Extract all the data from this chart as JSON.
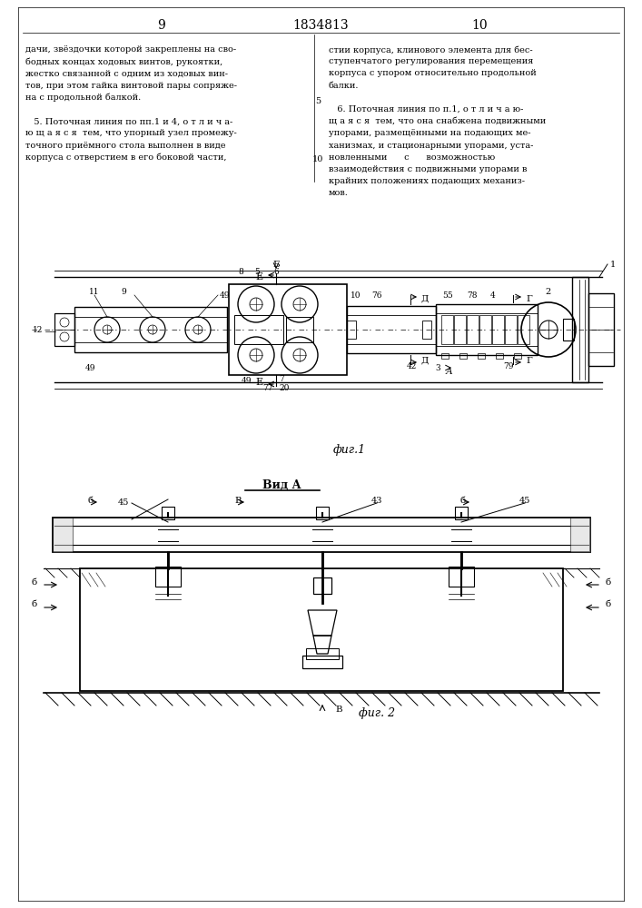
{
  "bg_color": "#ffffff",
  "page_width": 7.07,
  "page_height": 10.0,
  "header_page_left": "9",
  "header_title": "1834813",
  "header_page_right": "10",
  "text_col1": [
    "дачи, звёздочки которой закреплены на сво-",
    "бодных концах ходовых винтов, рукоятки,",
    "жестко связанной с одним из ходовых вин-",
    "тов, при этом гайка винтовой пары сопряже-",
    "на с продольной балкой.",
    "",
    "   5. Поточная линия по пп.1 и 4, о т л и ч а-",
    "ю щ а я с я  тем, что упорный узел промежу-",
    "точного приёмного стола выполнен в виде",
    "корпуса с отверстием в его боковой части,"
  ],
  "text_col2": [
    "стии корпуса, клинового элемента для бес-",
    "ступенчатого регулирования перемещения",
    "корпуса с упором относительно продольной",
    "балки.",
    "",
    "   6. Поточная линия по п.1, о т л и ч а ю-",
    "щ а я с я  тем, что она снабжена подвижными",
    "упорами, размещёнными на подающих ме-",
    "ханизмах, и стационарными упорами, уста-",
    "новленными      с      возможностью",
    "взаимодействия с подвижными упорами в",
    "крайних положениях подающих механиз-",
    "мов."
  ],
  "line_num_5": "5",
  "line_num_10": "10",
  "fig1_caption": "фиг.1",
  "fig2_caption": "фиг. 2",
  "vid_a_label": "Вид А"
}
